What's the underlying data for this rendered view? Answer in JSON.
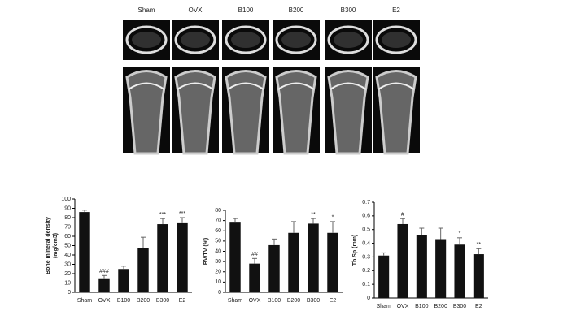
{
  "images": {
    "labels": [
      "Sham",
      "OVX",
      "B100",
      "B200",
      "B300",
      "E2"
    ]
  },
  "chart_data": [
    {
      "type": "bar",
      "ylabel": [
        "Bone mineral density",
        "(mg/cm3)"
      ],
      "categories": [
        "Sham",
        "OVX",
        "B100",
        "B200",
        "B300",
        "E2"
      ],
      "values": [
        86,
        15,
        25,
        47,
        73,
        74
      ],
      "errors": [
        2,
        3,
        3,
        12,
        6,
        6
      ],
      "annotations": [
        null,
        "###",
        null,
        null,
        "***",
        "***"
      ],
      "color": "#111111",
      "ylim": [
        0,
        100
      ],
      "yticks": [
        0,
        10,
        20,
        30,
        40,
        50,
        60,
        70,
        80,
        90,
        100
      ]
    },
    {
      "type": "bar",
      "ylabel": [
        "BV/TV (%)"
      ],
      "categories": [
        "Sham",
        "OVX",
        "B100",
        "B200",
        "B300",
        "E2"
      ],
      "values": [
        68,
        28,
        46,
        58,
        67,
        58
      ],
      "errors": [
        4,
        5,
        6,
        11,
        5,
        11
      ],
      "annotations": [
        null,
        "##",
        null,
        null,
        "**",
        "*"
      ],
      "color": "#111111",
      "ylim": [
        0,
        80
      ],
      "yticks": [
        0,
        10,
        20,
        30,
        40,
        50,
        60,
        70,
        80
      ]
    },
    {
      "type": "bar",
      "ylabel": [
        "Tb.Sp (mm)"
      ],
      "categories": [
        "Sham",
        "OVX",
        "B100",
        "B200",
        "B300",
        "E2"
      ],
      "values": [
        0.31,
        0.54,
        0.46,
        0.43,
        0.39,
        0.32
      ],
      "errors": [
        0.02,
        0.04,
        0.05,
        0.08,
        0.05,
        0.04
      ],
      "annotations": [
        null,
        "#",
        null,
        null,
        "*",
        "**"
      ],
      "color": "#111111",
      "ylim": [
        0,
        0.7
      ],
      "yticks": [
        0,
        0.1,
        0.2,
        0.3,
        0.4,
        0.5,
        0.6,
        0.7
      ]
    }
  ]
}
